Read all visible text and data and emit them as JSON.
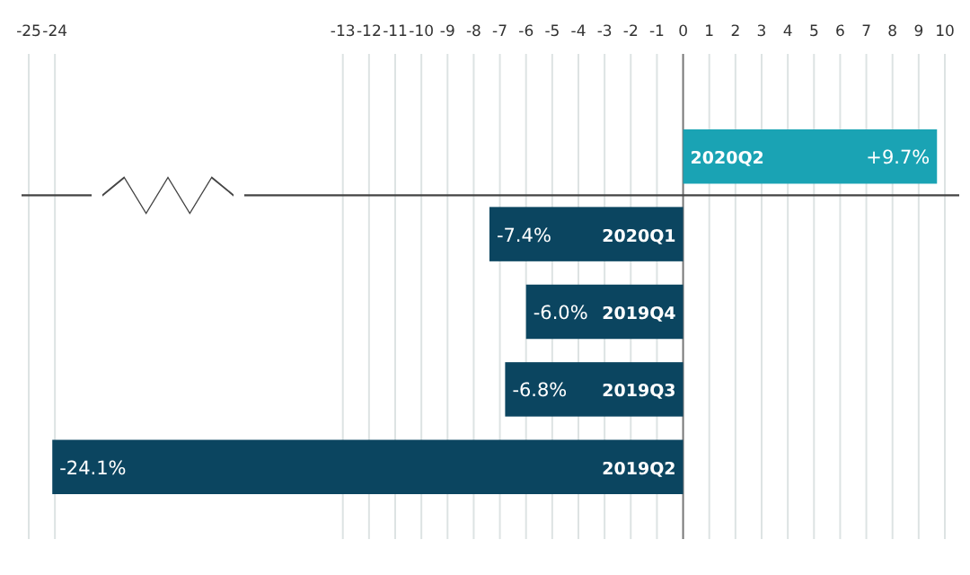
{
  "chart_data": {
    "type": "bar",
    "orientation": "horizontal",
    "categories": [
      "2020Q2",
      "2020Q1",
      "2019Q4",
      "2019Q3",
      "2019Q2"
    ],
    "values": [
      9.7,
      -7.4,
      -6.0,
      -6.8,
      -24.1
    ],
    "colors": [
      "#1aa3b4",
      "#0b4560",
      "#0b4560",
      "#0b4560",
      "#0b4560"
    ],
    "value_labels": [
      "+9.7%",
      "-7.4%",
      "-6.0%",
      "-6.8%",
      "-24.1%"
    ],
    "xlim": [
      -25,
      10
    ],
    "xticks": [
      -25,
      -24,
      -13,
      -12,
      -11,
      -10,
      -9,
      -8,
      -7,
      -6,
      -5,
      -4,
      -3,
      -2,
      -1,
      0,
      1,
      2,
      3,
      4,
      5,
      6,
      7,
      8,
      9,
      10
    ],
    "grid": "x"
  }
}
